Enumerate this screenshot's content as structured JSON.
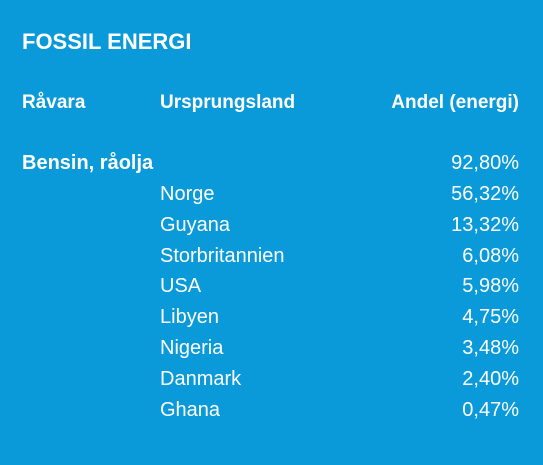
{
  "header": {
    "title": "FOSSIL ENERGI"
  },
  "table": {
    "columns": [
      "Råvara",
      "Ursprungsland",
      "Andel (energi)"
    ],
    "group": {
      "label": "Bensin, råolja",
      "share": "92,80%"
    },
    "rows": [
      [
        "Norge",
        "56,32%"
      ],
      [
        "Guyana",
        "13,32%"
      ],
      [
        "Storbritannien",
        "6,08%"
      ],
      [
        "USA",
        "5,98%"
      ],
      [
        "Libyen",
        "4,75%"
      ],
      [
        "Nigeria",
        "3,48%"
      ],
      [
        "Danmark",
        "2,40%"
      ],
      [
        "Ghana",
        "0,47%"
      ]
    ]
  }
}
